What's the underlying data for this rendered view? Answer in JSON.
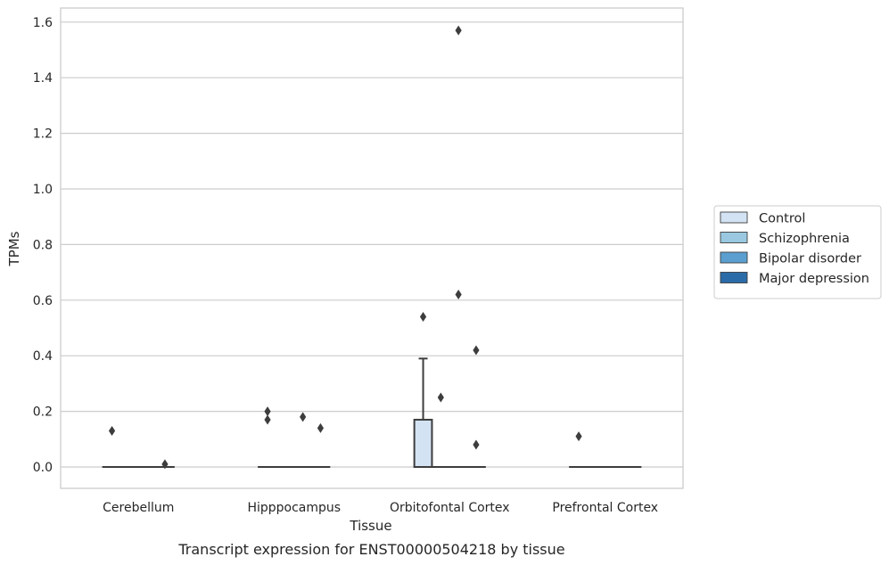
{
  "chart_data": {
    "type": "box",
    "xlabel": "Tissue",
    "ylabel": "TPMs",
    "caption": "Transcript expression for ENST00000504218 by tissue",
    "ylim": [
      -0.08,
      1.65
    ],
    "yticks": [
      "0.0",
      "0.2",
      "0.4",
      "0.6",
      "0.8",
      "1.0",
      "1.2",
      "1.4",
      "1.6"
    ],
    "grid": true,
    "legend_position": "right",
    "categories": [
      "Cerebellum",
      "Hipppocampus",
      "Orbitofontal Cortex",
      "Prefrontal Cortex"
    ],
    "series": [
      {
        "name": "Control",
        "color": "#d3e3f3",
        "boxes": [
          {
            "q1": 0,
            "median": 0,
            "q3": 0,
            "whisker_low": 0,
            "whisker_high": 0,
            "outliers": [
              0.13
            ]
          },
          {
            "q1": 0,
            "median": 0,
            "q3": 0,
            "whisker_low": 0,
            "whisker_high": 0,
            "outliers": [
              0.2,
              0.17
            ]
          },
          {
            "q1": 0,
            "median": 0,
            "q3": 0.17,
            "whisker_low": 0,
            "whisker_high": 0.39,
            "outliers": [
              0.54
            ]
          },
          {
            "q1": 0,
            "median": 0,
            "q3": 0,
            "whisker_low": 0,
            "whisker_high": 0,
            "outliers": [
              0.11
            ]
          }
        ]
      },
      {
        "name": "Schizophrenia",
        "color": "#9ac8e0",
        "boxes": [
          {
            "q1": 0,
            "median": 0,
            "q3": 0,
            "whisker_low": 0,
            "whisker_high": 0,
            "outliers": []
          },
          {
            "q1": 0,
            "median": 0,
            "q3": 0,
            "whisker_low": 0,
            "whisker_high": 0,
            "outliers": []
          },
          {
            "q1": 0,
            "median": 0,
            "q3": 0,
            "whisker_low": 0,
            "whisker_high": 0,
            "outliers": [
              0.25
            ]
          },
          {
            "q1": 0,
            "median": 0,
            "q3": 0,
            "whisker_low": 0,
            "whisker_high": 0,
            "outliers": []
          }
        ]
      },
      {
        "name": "Bipolar disorder",
        "color": "#5a9fcf",
        "boxes": [
          {
            "q1": 0,
            "median": 0,
            "q3": 0,
            "whisker_low": 0,
            "whisker_high": 0,
            "outliers": []
          },
          {
            "q1": 0,
            "median": 0,
            "q3": 0,
            "whisker_low": 0,
            "whisker_high": 0,
            "outliers": [
              0.18
            ]
          },
          {
            "q1": 0,
            "median": 0,
            "q3": 0,
            "whisker_low": 0,
            "whisker_high": 0,
            "outliers": [
              1.57,
              0.62
            ]
          },
          {
            "q1": 0,
            "median": 0,
            "q3": 0,
            "whisker_low": 0,
            "whisker_high": 0,
            "outliers": []
          }
        ]
      },
      {
        "name": "Major depression",
        "color": "#2b6ca8",
        "boxes": [
          {
            "q1": 0,
            "median": 0,
            "q3": 0,
            "whisker_low": 0,
            "whisker_high": 0,
            "outliers": [
              0.01
            ]
          },
          {
            "q1": 0,
            "median": 0,
            "q3": 0,
            "whisker_low": 0,
            "whisker_high": 0,
            "outliers": [
              0.14
            ]
          },
          {
            "q1": 0,
            "median": 0,
            "q3": 0,
            "whisker_low": 0,
            "whisker_high": 0,
            "outliers": [
              0.42,
              0.08
            ]
          },
          {
            "q1": 0,
            "median": 0,
            "q3": 0,
            "whisker_low": 0,
            "whisker_high": 0,
            "outliers": []
          }
        ]
      }
    ]
  }
}
